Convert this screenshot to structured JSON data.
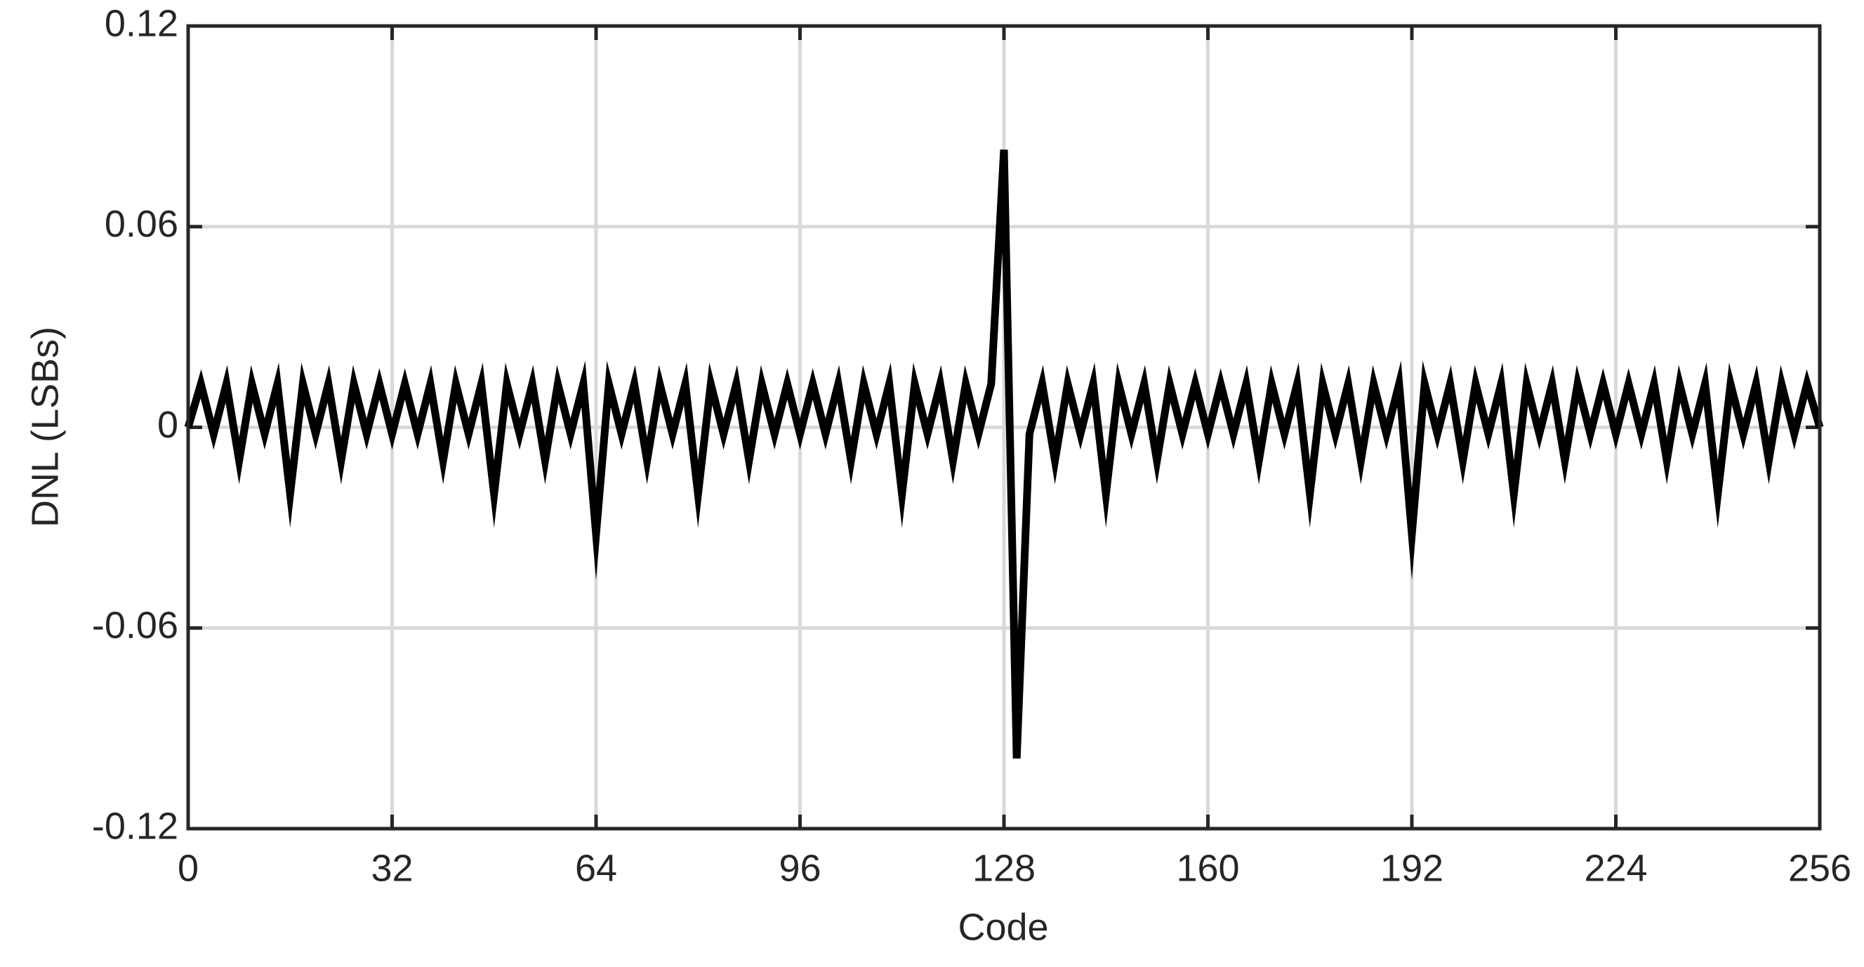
{
  "chart_data": {
    "type": "line",
    "xlabel": "Code",
    "ylabel": "DNL (LSBs)",
    "x": [
      0,
      2,
      4,
      6,
      8,
      10,
      12,
      14,
      16,
      18,
      20,
      22,
      24,
      26,
      28,
      30,
      32,
      34,
      36,
      38,
      40,
      42,
      44,
      46,
      48,
      50,
      52,
      54,
      56,
      58,
      60,
      62,
      64,
      66,
      68,
      70,
      72,
      74,
      76,
      78,
      80,
      82,
      84,
      86,
      88,
      90,
      92,
      94,
      96,
      98,
      100,
      102,
      104,
      106,
      108,
      110,
      112,
      114,
      116,
      118,
      120,
      122,
      124,
      126,
      128,
      130,
      132,
      134,
      136,
      138,
      140,
      142,
      144,
      146,
      148,
      150,
      152,
      154,
      156,
      158,
      160,
      162,
      164,
      166,
      168,
      170,
      172,
      174,
      176,
      178,
      180,
      182,
      184,
      186,
      188,
      190,
      192,
      194,
      196,
      198,
      200,
      202,
      204,
      206,
      208,
      210,
      212,
      214,
      216,
      218,
      220,
      222,
      224,
      226,
      228,
      230,
      232,
      234,
      236,
      238,
      240,
      242,
      244,
      246,
      248,
      250,
      252,
      254,
      256
    ],
    "values": [
      0,
      0.013,
      -0.002,
      0.013,
      -0.01,
      0.013,
      -0.002,
      0.013,
      -0.02,
      0.013,
      -0.002,
      0.013,
      -0.01,
      0.013,
      -0.002,
      0.013,
      -0.002,
      0.013,
      -0.002,
      0.013,
      -0.01,
      0.013,
      -0.002,
      0.013,
      -0.02,
      0.013,
      -0.002,
      0.013,
      -0.01,
      0.013,
      -0.002,
      0.013,
      -0.032,
      0.013,
      -0.002,
      0.013,
      -0.01,
      0.013,
      -0.002,
      0.013,
      -0.02,
      0.013,
      -0.002,
      0.013,
      -0.01,
      0.013,
      -0.002,
      0.013,
      -0.002,
      0.013,
      -0.002,
      0.013,
      -0.01,
      0.013,
      -0.002,
      0.013,
      -0.02,
      0.013,
      -0.002,
      0.013,
      -0.01,
      0.013,
      -0.002,
      0.013,
      0.083,
      -0.099,
      -0.002,
      0.013,
      -0.01,
      0.013,
      -0.002,
      0.013,
      -0.02,
      0.013,
      -0.002,
      0.013,
      -0.01,
      0.013,
      -0.002,
      0.013,
      -0.002,
      0.013,
      -0.002,
      0.013,
      -0.01,
      0.013,
      -0.002,
      0.013,
      -0.02,
      0.013,
      -0.002,
      0.013,
      -0.01,
      0.013,
      -0.002,
      0.013,
      -0.032,
      0.013,
      -0.002,
      0.013,
      -0.01,
      0.013,
      -0.002,
      0.013,
      -0.02,
      0.013,
      -0.002,
      0.013,
      -0.01,
      0.013,
      -0.002,
      0.013,
      -0.002,
      0.013,
      -0.002,
      0.013,
      -0.01,
      0.013,
      -0.002,
      0.013,
      -0.02,
      0.013,
      -0.002,
      0.013,
      -0.01,
      0.013,
      -0.002,
      0.013,
      0
    ],
    "color": "#000000",
    "xlim": [
      0,
      256
    ],
    "xticks": [
      0,
      32,
      64,
      96,
      128,
      160,
      192,
      224,
      256
    ],
    "ylim": [
      -0.12,
      0.12
    ],
    "yticks": [
      -0.12,
      -0.06,
      0,
      0.06,
      0.12
    ],
    "grid": true
  }
}
